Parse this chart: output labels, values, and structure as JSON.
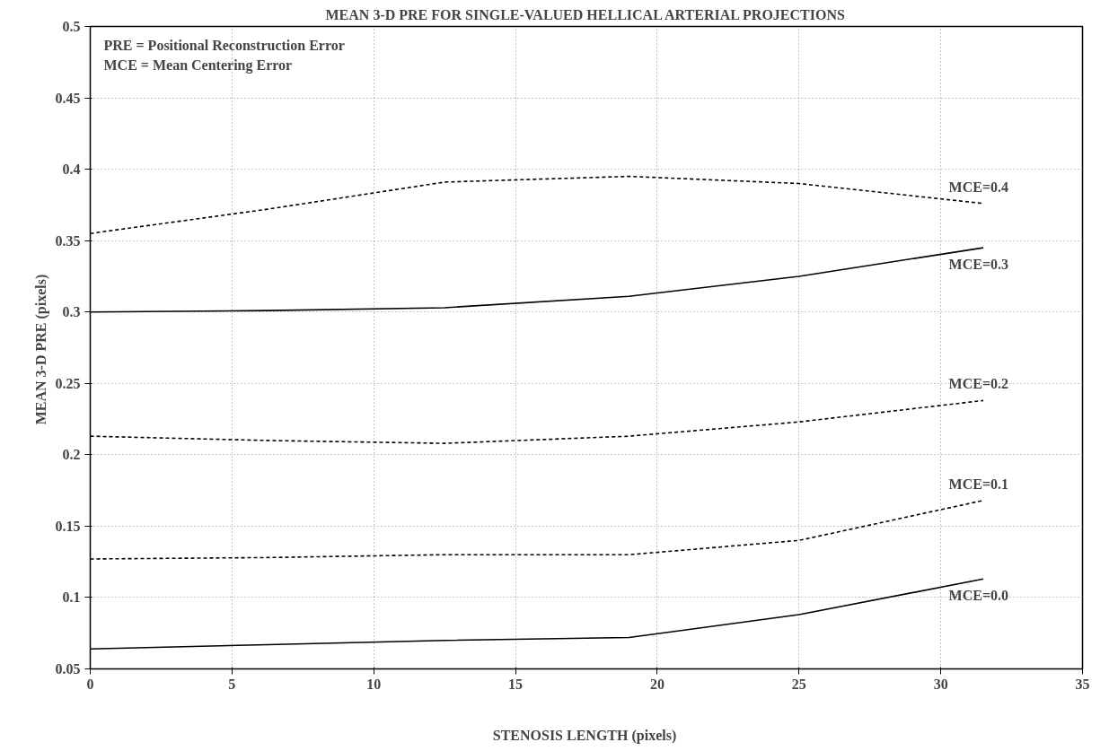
{
  "chart_data": {
    "type": "line",
    "title": "MEAN 3-D PRE FOR SINGLE-VALUED HELLICAL ARTERIAL PROJECTIONS",
    "xlabel": "STENOSIS LENGTH  (pixels)",
    "ylabel": "MEAN 3-D PRE  (pixels)",
    "x": [
      0,
      6.25,
      12.5,
      19,
      25,
      31.5
    ],
    "series": [
      {
        "name": "MCE=0.4",
        "color": "#000000",
        "line_style": "dashed",
        "values": [
          0.355,
          0.372,
          0.391,
          0.395,
          0.39,
          0.376
        ]
      },
      {
        "name": "MCE=0.3",
        "color": "#000000",
        "line_style": "solid",
        "values": [
          0.3,
          0.301,
          0.303,
          0.311,
          0.325,
          0.345
        ]
      },
      {
        "name": "MCE=0.2",
        "color": "#000000",
        "line_style": "dashed",
        "values": [
          0.213,
          0.21,
          0.208,
          0.213,
          0.223,
          0.238
        ]
      },
      {
        "name": "MCE=0.1",
        "color": "#000000",
        "line_style": "dashed",
        "values": [
          0.127,
          0.128,
          0.13,
          0.13,
          0.14,
          0.168
        ]
      },
      {
        "name": "MCE=0.0",
        "color": "#000000",
        "line_style": "solid",
        "values": [
          0.064,
          0.067,
          0.07,
          0.072,
          0.088,
          0.113
        ]
      }
    ],
    "annotations": [
      "PRE = Positional Reconstruction Error",
      "MCE = Mean Centering Error"
    ],
    "xlim": [
      0,
      35
    ],
    "xticks": [
      0,
      5,
      10,
      15,
      20,
      25,
      30,
      35
    ],
    "ylim": [
      0.05,
      0.5
    ],
    "yticks": [
      0.05,
      0.1,
      0.15,
      0.2,
      0.25,
      0.3,
      0.35,
      0.4,
      0.45,
      0.5
    ],
    "grid": true,
    "marker": "none"
  }
}
